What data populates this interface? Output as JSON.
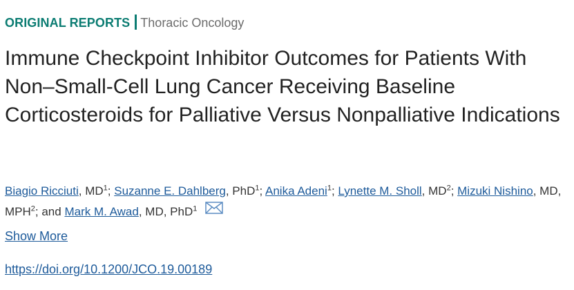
{
  "header": {
    "section": "ORIGINAL REPORTS",
    "subsection": "Thoracic Oncology"
  },
  "title": "Immune Checkpoint Inhibitor Outcomes for Patients With Non–Small-Cell Lung Cancer Receiving Baseline Corticosteroids for Palliative Versus Nonpalliative Indications",
  "authors": [
    {
      "name": "Biagio Ricciuti",
      "credentials": ", MD",
      "affiliation": "1",
      "separator": "; "
    },
    {
      "name": "Suzanne E. Dahlberg",
      "credentials": ", PhD",
      "affiliation": "1",
      "separator": "; "
    },
    {
      "name": "Anika Adeni",
      "affiliation": "1",
      "separator": "; "
    },
    {
      "name": "Lynette M. Sholl",
      "credentials": ", MD",
      "affiliation": "2",
      "separator": "; "
    },
    {
      "name": "Mizuki Nishino",
      "credentials": ", MD, MPH",
      "affiliation": "2",
      "separator": "; and "
    },
    {
      "name": "Mark M. Awad",
      "credentials": ", MD, PhD",
      "affiliation": "1"
    }
  ],
  "show_more": "Show More",
  "doi": "https://doi.org/10.1200/JCO.19.00189"
}
